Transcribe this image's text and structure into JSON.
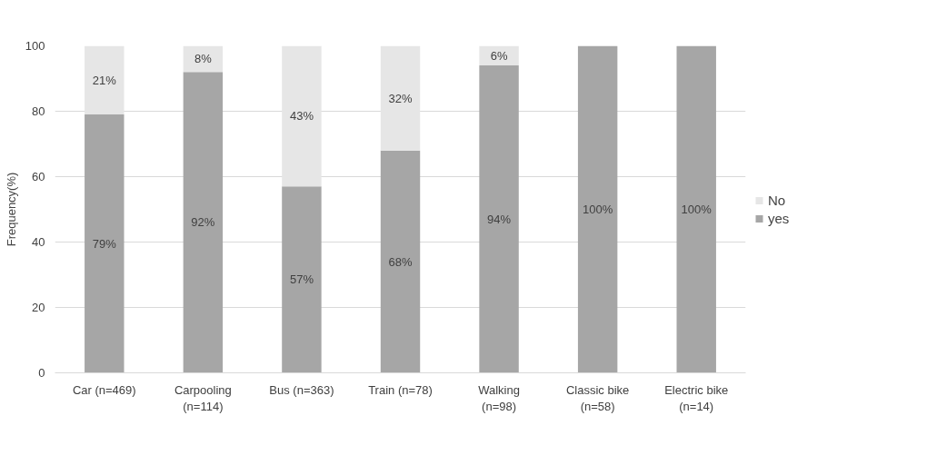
{
  "chart_data": {
    "type": "bar",
    "stacked": true,
    "ylabel": "Frequency(%)",
    "categories": [
      "Car (n=469)",
      "Carpooling\n(n=114)",
      "Bus (n=363)",
      "Train (n=78)",
      "Walking\n(n=98)",
      "Classic bike\n(n=58)",
      "Electric bike\n(n=14)"
    ],
    "series": [
      {
        "name": "yes",
        "color": "#a6a6a6",
        "values": [
          79,
          92,
          57,
          68,
          94,
          100,
          100
        ],
        "value_labels": [
          "79%",
          "92%",
          "57%",
          "68%",
          "94%",
          "100%",
          "100%"
        ]
      },
      {
        "name": "No",
        "color": "#e6e6e6",
        "values": [
          21,
          8,
          43,
          32,
          6,
          0,
          0
        ],
        "value_labels": [
          "21%",
          "8%",
          "43%",
          "32%",
          "6%",
          null,
          null
        ]
      }
    ],
    "ylim": [
      0,
      100
    ],
    "yticks": [
      0,
      20,
      40,
      60,
      80,
      100
    ],
    "grid": "y",
    "legend": "right"
  }
}
